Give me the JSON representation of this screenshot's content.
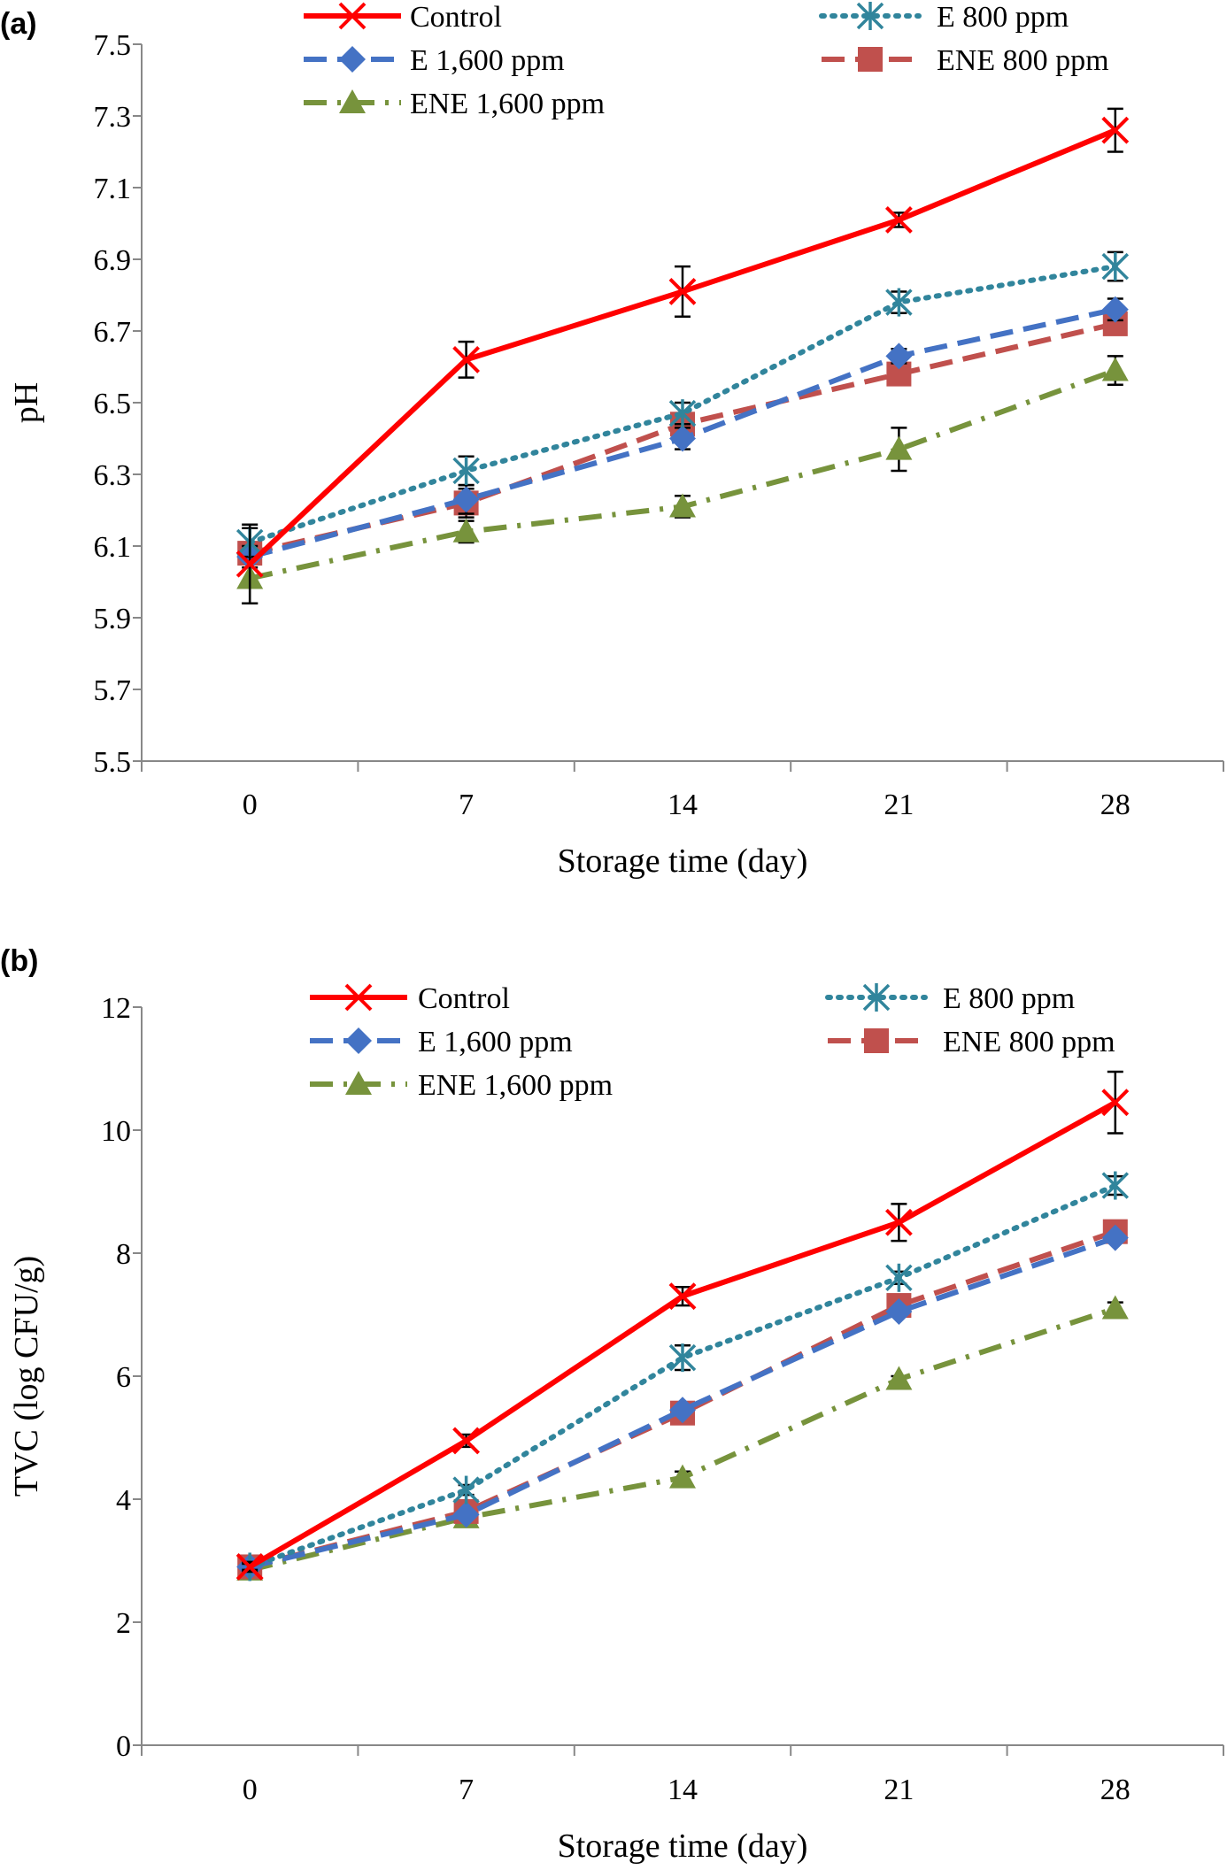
{
  "chart_data": [
    {
      "type": "line",
      "panel_label": "(a)",
      "categories": [
        "0",
        "7",
        "14",
        "21",
        "28"
      ],
      "x": [
        0,
        7,
        14,
        21,
        28
      ],
      "xlabel": "Storage time (day)",
      "ylabel": "pH",
      "ylim": [
        5.5,
        7.5
      ],
      "yticks": [
        "5.5",
        "5.7",
        "5.9",
        "6.1",
        "6.3",
        "6.5",
        "6.7",
        "6.9",
        "7.1",
        "7.3",
        "7.5"
      ],
      "grid": false,
      "legend": "top",
      "series": [
        {
          "name": "Control",
          "values": [
            6.05,
            6.62,
            6.81,
            7.01,
            7.26
          ],
          "errors": [
            0.11,
            0.05,
            0.07,
            0.02,
            0.06
          ],
          "color": "#FF0000",
          "marker": "x",
          "dash": "solid"
        },
        {
          "name": "E 800 ppm",
          "values": [
            6.11,
            6.31,
            6.47,
            6.78,
            6.88
          ],
          "errors": [
            0.04,
            0.04,
            0.03,
            0.03,
            0.04
          ],
          "color": "#31859C",
          "marker": "star",
          "dash": "dotted"
        },
        {
          "name": "E 1,600 ppm",
          "values": [
            6.07,
            6.23,
            6.4,
            6.63,
            6.76
          ],
          "errors": [
            0.03,
            0.04,
            0.03,
            0.02,
            0.03
          ],
          "color": "#4472C4",
          "marker": "diamond",
          "dash": "dashed"
        },
        {
          "name": "ENE 800 ppm",
          "values": [
            6.08,
            6.22,
            6.44,
            6.58,
            6.72
          ],
          "errors": [
            0.03,
            0.04,
            0.03,
            0.02,
            0.03
          ],
          "color": "#C0504D",
          "marker": "square",
          "dash": "dashed"
        },
        {
          "name": "ENE 1,600 ppm",
          "values": [
            6.01,
            6.14,
            6.21,
            6.37,
            6.59
          ],
          "errors": [
            0.07,
            0.03,
            0.03,
            0.06,
            0.04
          ],
          "color": "#77933C",
          "marker": "triangle",
          "dash": "dashdot"
        }
      ]
    },
    {
      "type": "line",
      "panel_label": "(b)",
      "categories": [
        "0",
        "7",
        "14",
        "21",
        "28"
      ],
      "x": [
        0,
        7,
        14,
        21,
        28
      ],
      "xlabel": "Storage time (day)",
      "ylabel": "TVC (log CFU/g)",
      "ylim": [
        0,
        12
      ],
      "yticks": [
        "0",
        "2",
        "4",
        "6",
        "8",
        "10",
        "12"
      ],
      "grid": false,
      "legend": "top",
      "series": [
        {
          "name": "Control",
          "values": [
            2.9,
            4.95,
            7.3,
            8.5,
            10.45
          ],
          "errors": [
            0.08,
            0.1,
            0.15,
            0.3,
            0.5
          ],
          "color": "#FF0000",
          "marker": "x",
          "dash": "solid"
        },
        {
          "name": "E 800 ppm",
          "values": [
            2.9,
            4.15,
            6.3,
            7.6,
            9.1
          ],
          "errors": [
            0.05,
            0.08,
            0.2,
            0.1,
            0.15
          ],
          "color": "#31859C",
          "marker": "star",
          "dash": "dotted"
        },
        {
          "name": "E 1,600 ppm",
          "values": [
            2.9,
            3.75,
            5.45,
            7.05,
            8.25
          ],
          "errors": [
            0.05,
            0.05,
            0.05,
            0.05,
            0.05
          ],
          "color": "#4472C4",
          "marker": "diamond",
          "dash": "dashed"
        },
        {
          "name": "ENE 800 ppm",
          "values": [
            2.9,
            3.8,
            5.4,
            7.15,
            8.35
          ],
          "errors": [
            0.05,
            0.05,
            0.05,
            0.05,
            0.05
          ],
          "color": "#C0504D",
          "marker": "square",
          "dash": "dashed"
        },
        {
          "name": "ENE 1,600 ppm",
          "values": [
            2.85,
            3.7,
            4.35,
            5.95,
            7.1
          ],
          "errors": [
            0.05,
            0.05,
            0.1,
            0.05,
            0.1
          ],
          "color": "#77933C",
          "marker": "triangle",
          "dash": "dashdot"
        }
      ]
    }
  ]
}
